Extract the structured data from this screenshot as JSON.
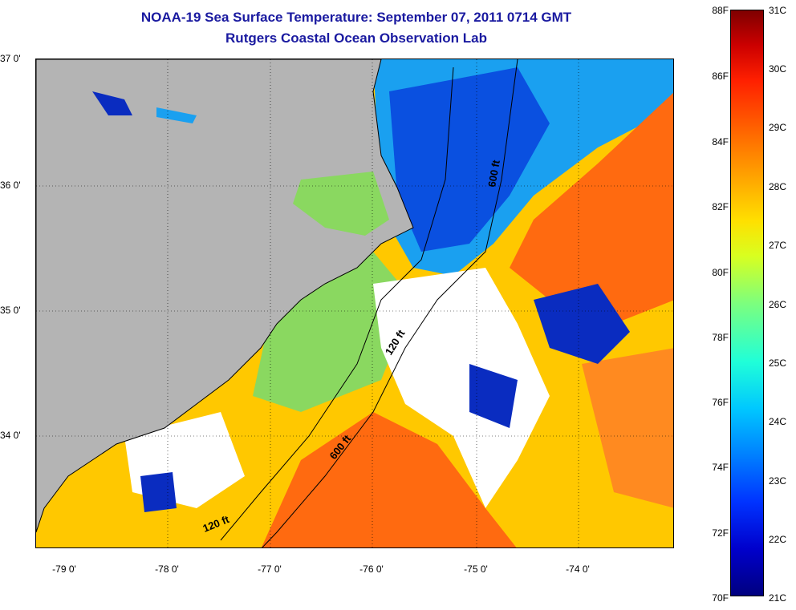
{
  "title": {
    "line1": "NOAA-19 Sea Surface Temperature:  September 07, 2011 0714 GMT",
    "line2": "Rutgers Coastal Ocean Observation Lab"
  },
  "map": {
    "lat_labels": [
      "37 0'",
      "36 0'",
      "35 0'",
      "34 0'"
    ],
    "lon_labels": [
      "-79 0'",
      "-78 0'",
      "-77 0'",
      "-76 0'",
      "-75 0'",
      "-74 0'"
    ],
    "isobath_labels": [
      "600 ft",
      "120 ft",
      "600 ft",
      "120 ft"
    ],
    "colors": {
      "land": "#b4b4b4",
      "cloud": "#ffffff",
      "cold": "#0a2cc0",
      "cool": "#1aa0f0",
      "mid": "#7cd870",
      "warm": "#ffd000",
      "hot": "#ff5a10"
    }
  },
  "colorbar": {
    "fahrenheit": [
      "88F",
      "86F",
      "84F",
      "82F",
      "80F",
      "78F",
      "76F",
      "74F",
      "72F",
      "70F"
    ],
    "celsius": [
      "31C",
      "30C",
      "29C",
      "28C",
      "27C",
      "26C",
      "25C",
      "24C",
      "23C",
      "22C",
      "21C"
    ]
  }
}
